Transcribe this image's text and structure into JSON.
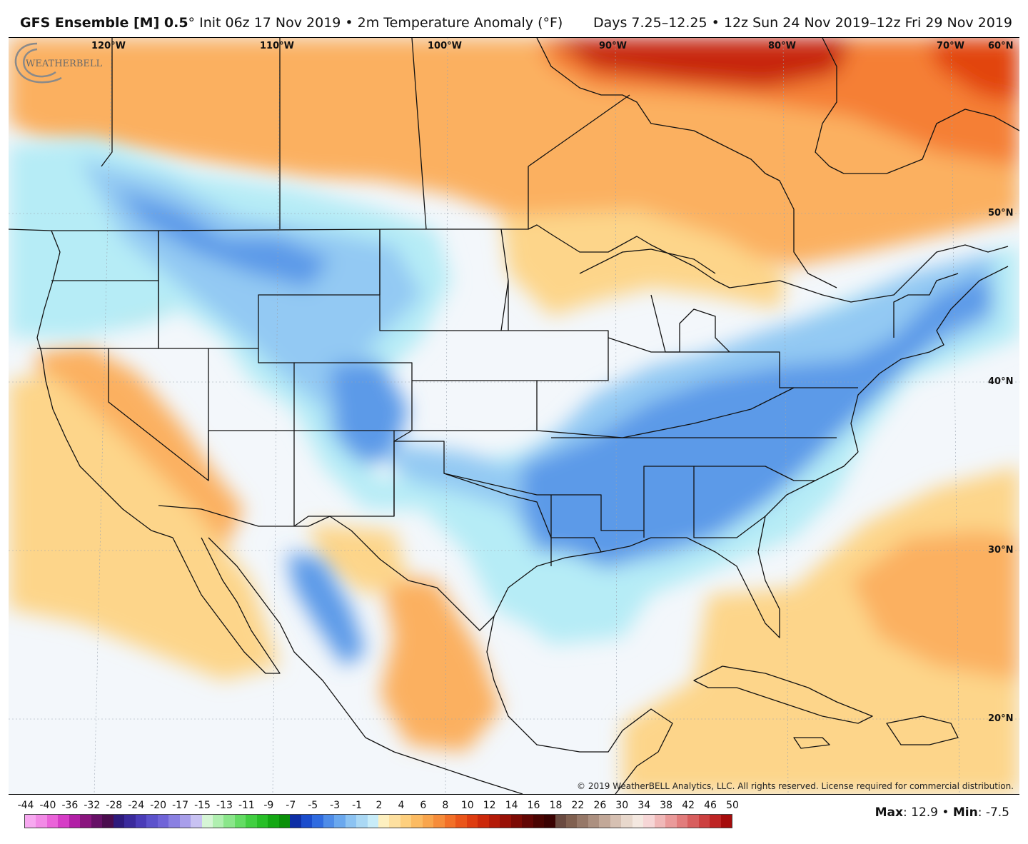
{
  "header": {
    "model": "GFS Ensemble [M] 0.5",
    "degree": "°",
    "init": " Init 06z 17 Nov 2019 • 2m Temperature Anomaly (°F)",
    "period": "Days 7.25–12.25 • 12z Sun 24 Nov 2019–12z Fri 29 Nov 2019"
  },
  "map": {
    "longitude_labels": [
      "120°W",
      "110°W",
      "100°W",
      "90°W",
      "80°W",
      "70°W"
    ],
    "latitude_labels": [
      "60°N",
      "50°N",
      "40°N",
      "30°N",
      "20°N"
    ],
    "copyright": "© 2019 WeatherBELL Analytics, LLC. All rights reserved. License required for commercial distribution.",
    "logo_text": "WEATHERBELL",
    "colors": {
      "ocean_neutral": "#f3f7fb",
      "warm_light": "#fdd58a",
      "warm_mid": "#fbb061",
      "warm_strong": "#f57f35",
      "warm_extreme": "#c8260c",
      "cool_light": "#b6ecf6",
      "cool_mid": "#93c9f3",
      "cool_strong": "#5c9ae8",
      "boundary": "#111111"
    }
  },
  "legend": {
    "ticks": [
      "-44",
      "-40",
      "-36",
      "-32",
      "-28",
      "-24",
      "-20",
      "-17",
      "-15",
      "-13",
      "-11",
      "-9",
      "-7",
      "-5",
      "-3",
      "-1",
      "2",
      "4",
      "6",
      "8",
      "10",
      "12",
      "14",
      "16",
      "18",
      "22",
      "26",
      "30",
      "34",
      "38",
      "42",
      "46",
      "50"
    ],
    "colors": [
      "#f7a8f0",
      "#f28ae6",
      "#ea63d9",
      "#d63cc6",
      "#b21fa6",
      "#8a157e",
      "#661066",
      "#4a0c4e",
      "#2e1a7c",
      "#3a2a9c",
      "#4a3cb8",
      "#5c52cc",
      "#7064d8",
      "#8a80e2",
      "#a89eea",
      "#c8c2f2",
      "#d6f5d6",
      "#b0efb0",
      "#8ae68a",
      "#64dc64",
      "#42cf42",
      "#28bf28",
      "#14a814",
      "#0a900a",
      "#0e2fa6",
      "#1a4ccc",
      "#2f6be0",
      "#4e8ce8",
      "#6aa8ee",
      "#8cc3f2",
      "#aad8f4",
      "#c8ecf8",
      "#fdf0c0",
      "#fde0a0",
      "#fdcf7e",
      "#fcbb62",
      "#f9a54c",
      "#f68c3a",
      "#f27028",
      "#ea551a",
      "#de3c10",
      "#cc280a",
      "#b41a08",
      "#981006",
      "#7c0a04",
      "#620604",
      "#4a0402",
      "#3a0202",
      "#6a4a40",
      "#806050",
      "#967868",
      "#ac9080",
      "#c2a898",
      "#d6c0b2",
      "#e8d8cc",
      "#f4e8e0",
      "#f6d6d6",
      "#f0b8b8",
      "#ea9a9a",
      "#e27c7c",
      "#d85e5e",
      "#cc4040",
      "#be2424",
      "#a60c0c"
    ]
  },
  "stats": {
    "max_label": "Max",
    "max_value": ": 12.9 • ",
    "min_label": "Min",
    "min_value": ": -7.5"
  }
}
